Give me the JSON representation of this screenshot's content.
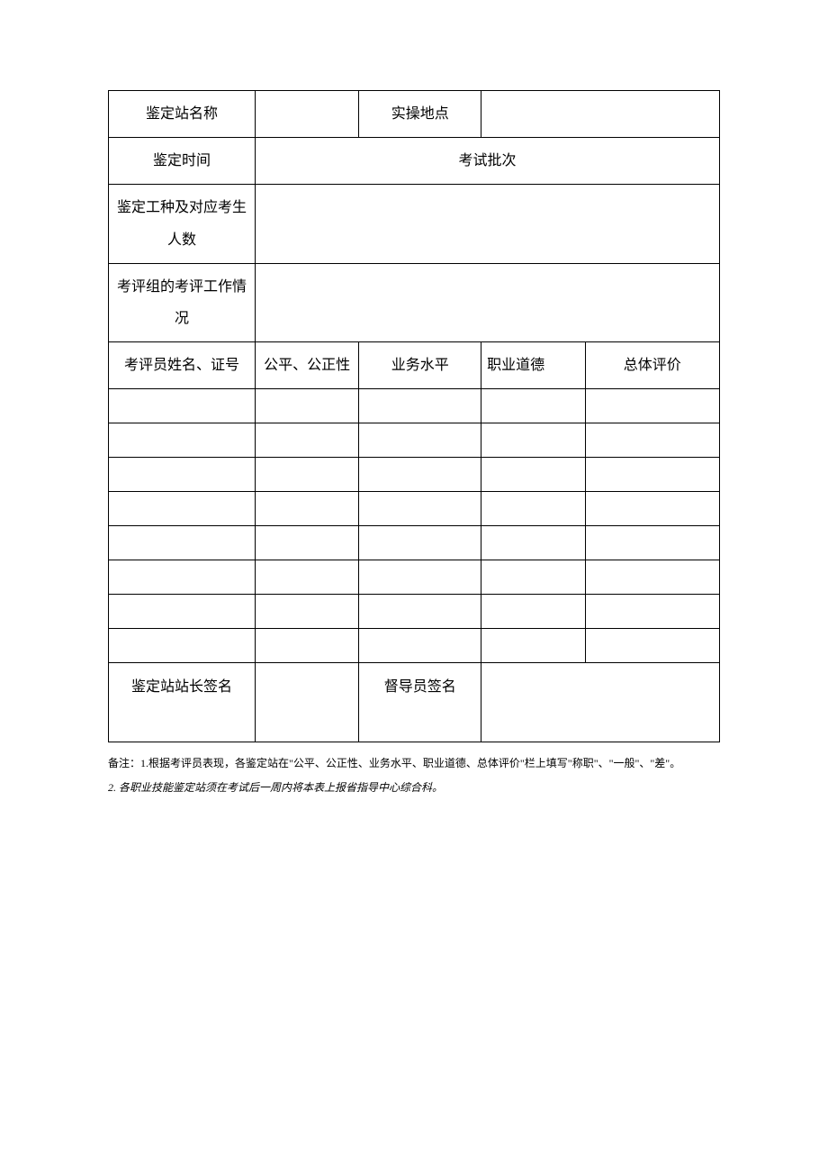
{
  "table": {
    "row1": {
      "label1": "鉴定站名称",
      "value1": "",
      "label2": "实操地点",
      "value2": ""
    },
    "row2": {
      "label1": "鉴定时间",
      "label2": "考试批次"
    },
    "row3": {
      "label": "鉴定工种及对应考生人数",
      "value": ""
    },
    "row4": {
      "label": "考评组的考评工作情况",
      "value": ""
    },
    "headers": {
      "col1": "考评员姓名、证号",
      "col2": "公平、公正性",
      "col3": "业务水平",
      "col4": "职业道德",
      "col5": "总体评价"
    },
    "rows": [
      {
        "c1": "",
        "c2": "",
        "c3": "",
        "c4": "",
        "c5": ""
      },
      {
        "c1": "",
        "c2": "",
        "c3": "",
        "c4": "",
        "c5": ""
      },
      {
        "c1": "",
        "c2": "",
        "c3": "",
        "c4": "",
        "c5": ""
      },
      {
        "c1": "",
        "c2": "",
        "c3": "",
        "c4": "",
        "c5": ""
      },
      {
        "c1": "",
        "c2": "",
        "c3": "",
        "c4": "",
        "c5": ""
      },
      {
        "c1": "",
        "c2": "",
        "c3": "",
        "c4": "",
        "c5": ""
      },
      {
        "c1": "",
        "c2": "",
        "c3": "",
        "c4": "",
        "c5": ""
      },
      {
        "c1": "",
        "c2": "",
        "c3": "",
        "c4": "",
        "c5": ""
      }
    ],
    "signature": {
      "label1": "鉴定站站长签名",
      "value1": "",
      "label2": "督导员签名",
      "value2": ""
    }
  },
  "notes": {
    "line1": "备注：1.根据考评员表现，各鉴定站在\"公平、公正性、业务水平、职业道德、总体评价\"栏上填写\"称职\"、\"一般\"、\"差\"。",
    "line2": "2. 各职业技能鉴定站须在考试后一周内将本表上报省指导中心综合科。"
  },
  "columns": {
    "widths": [
      "24%",
      "17%",
      "20%",
      "17%",
      "22%"
    ]
  }
}
